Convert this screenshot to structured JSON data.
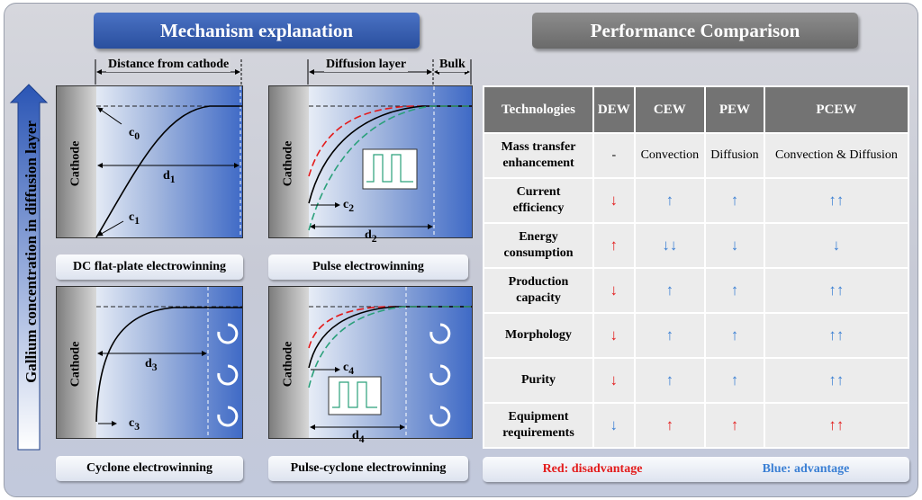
{
  "left_header": "Mechanism explanation",
  "right_header": "Performance Comparison",
  "y_axis_label": "Gallium concentration in diffusion layer",
  "dim_labels": {
    "distance": "Distance from cathode",
    "diffusion": "Diffusion layer",
    "bulk": "Bulk"
  },
  "panels": [
    {
      "caption": "DC flat-plate electrowinning",
      "cathode": "Cathode",
      "c_label": "c",
      "c_sub": "0",
      "c2_label": "c",
      "c2_sub": "1",
      "d_label": "d",
      "d_sub": "1"
    },
    {
      "caption": "Pulse electrowinning",
      "cathode": "Cathode",
      "c_label": "c",
      "c_sub": "2",
      "d_label": "d",
      "d_sub": "2"
    },
    {
      "caption": "Cyclone electrowinning",
      "cathode": "Cathode",
      "c_label": "c",
      "c_sub": "3",
      "d_label": "d",
      "d_sub": "3"
    },
    {
      "caption": "Pulse-cyclone electrowinning",
      "cathode": "Cathode",
      "c_label": "c",
      "c_sub": "4",
      "d_label": "d",
      "d_sub": "4"
    }
  ],
  "table": {
    "headers": [
      "Technologies",
      "DEW",
      "CEW",
      "PEW",
      "PCEW"
    ],
    "rows": [
      {
        "label": [
          "Mass transfer",
          "enhancement"
        ],
        "cells": [
          {
            "t": "-",
            "c": "plain"
          },
          {
            "t": "Convection",
            "c": "plain"
          },
          {
            "t": "Diffusion",
            "c": "plain"
          },
          {
            "t": "Convection & Diffusion",
            "c": "plain"
          }
        ]
      },
      {
        "label": [
          "Current",
          "efficiency"
        ],
        "cells": [
          {
            "t": "↓",
            "c": "red"
          },
          {
            "t": "↑",
            "c": "blue"
          },
          {
            "t": "↑",
            "c": "blue"
          },
          {
            "t": "↑↑",
            "c": "blue"
          }
        ]
      },
      {
        "label": [
          "Energy",
          "consumption"
        ],
        "cells": [
          {
            "t": "↑",
            "c": "red"
          },
          {
            "t": "↓↓",
            "c": "blue"
          },
          {
            "t": "↓",
            "c": "blue"
          },
          {
            "t": "↓",
            "c": "blue"
          }
        ]
      },
      {
        "label": [
          "Production",
          "capacity"
        ],
        "cells": [
          {
            "t": "↓",
            "c": "red"
          },
          {
            "t": "↑",
            "c": "blue"
          },
          {
            "t": "↑",
            "c": "blue"
          },
          {
            "t": "↑↑",
            "c": "blue"
          }
        ]
      },
      {
        "label": [
          "Morphology"
        ],
        "cells": [
          {
            "t": "↓",
            "c": "red"
          },
          {
            "t": "↑",
            "c": "blue"
          },
          {
            "t": "↑",
            "c": "blue"
          },
          {
            "t": "↑↑",
            "c": "blue"
          }
        ]
      },
      {
        "label": [
          "Purity"
        ],
        "cells": [
          {
            "t": "↓",
            "c": "red"
          },
          {
            "t": "↑",
            "c": "blue"
          },
          {
            "t": "↑",
            "c": "blue"
          },
          {
            "t": "↑↑",
            "c": "blue"
          }
        ]
      },
      {
        "label": [
          "Equipment",
          "requirements"
        ],
        "cells": [
          {
            "t": "↓",
            "c": "blue"
          },
          {
            "t": "↑",
            "c": "red"
          },
          {
            "t": "↑",
            "c": "red"
          },
          {
            "t": "↑↑",
            "c": "red"
          }
        ]
      }
    ]
  },
  "legend": {
    "red": "Red: disadvantage",
    "blue": "Blue: advantage"
  },
  "colors": {
    "red": "#e31b1b",
    "blue": "#3a7fd4",
    "green": "#2aa07a",
    "header_blue": "#2a4f9e",
    "header_gray": "#6a6a6a"
  }
}
